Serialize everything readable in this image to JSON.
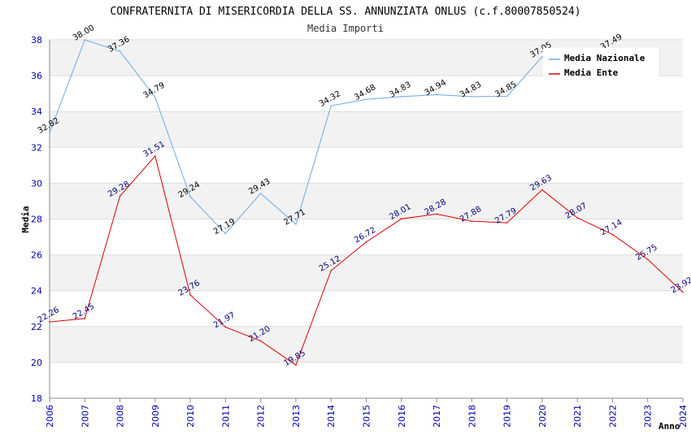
{
  "chart_data": {
    "type": "line",
    "title": "CONFRATERNITA DI MISERICORDIA DELLA SS. ANNUNZIATA ONLUS (c.f.80007850524)",
    "subtitle": "Media Importi",
    "xlabel": "Anno",
    "ylabel": "Media",
    "ylim": [
      18,
      38
    ],
    "yticks": [
      "18",
      "20",
      "22",
      "24",
      "26",
      "28",
      "30",
      "32",
      "34",
      "36",
      "38"
    ],
    "categories": [
      "2006",
      "2007",
      "2008",
      "2009",
      "2010",
      "2011",
      "2012",
      "2013",
      "2014",
      "2015",
      "2016",
      "2017",
      "2018",
      "2019",
      "2020",
      "2021",
      "2022",
      "2023",
      "2024"
    ],
    "series": [
      {
        "name": "Media Nazionale",
        "color": "#6aa8e8",
        "label_color": "#000000",
        "values": [
          32.82,
          38.0,
          37.36,
          34.79,
          29.24,
          27.19,
          29.43,
          27.71,
          34.32,
          34.68,
          34.83,
          34.94,
          34.83,
          34.85,
          37.05,
          null,
          37.49,
          null,
          null
        ],
        "labels": [
          "32.82",
          "38.00",
          "37.36",
          "34.79",
          "29.24",
          "27.19",
          "29.43",
          "27.71",
          "34.32",
          "34.68",
          "34.83",
          "34.94",
          "34.83",
          "34.85",
          "37.05",
          null,
          "37.49",
          null,
          null
        ]
      },
      {
        "name": "Media Ente",
        "color": "#dd0000",
        "label_color": "#000080",
        "values": [
          22.26,
          22.45,
          29.28,
          31.51,
          23.76,
          21.97,
          21.2,
          19.85,
          25.12,
          26.72,
          28.01,
          28.28,
          27.88,
          27.79,
          29.63,
          28.07,
          27.14,
          25.75,
          23.92
        ],
        "labels": [
          "22.26",
          "22.45",
          "29.28",
          "31.51",
          "23.76",
          "21.97",
          "21.20",
          "19.85",
          "25.12",
          "26.72",
          "28.01",
          "28.28",
          "27.88",
          "27.79",
          "29.63",
          "28.07",
          "27.14",
          "25.75",
          "23.92"
        ]
      }
    ],
    "legend": {
      "position": "top-right",
      "entries": [
        "Media Nazionale",
        "Media Ente"
      ]
    },
    "grid": true
  }
}
